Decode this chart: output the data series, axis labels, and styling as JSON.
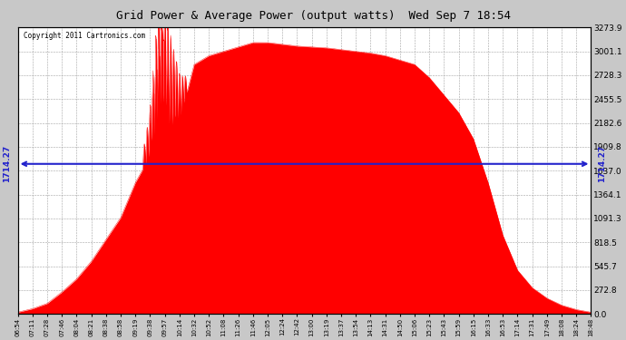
{
  "title": "Grid Power & Average Power (output watts)  Wed Sep 7 18:54",
  "copyright": "Copyright 2011 Cartronics.com",
  "avg_power": 1714.27,
  "avg_label": "1714.27",
  "yticks": [
    0.0,
    272.8,
    545.7,
    818.5,
    1091.3,
    1364.1,
    1637.0,
    1909.8,
    2182.6,
    2455.5,
    2728.3,
    3001.1,
    3273.9
  ],
  "ymax": 3273.9,
  "fill_color": "#ff0000",
  "avg_line_color": "#2222cc",
  "title_color": "#000000",
  "plot_bg": "#ffffff",
  "outer_bg": "#c8c8c8",
  "xtick_labels": [
    "06:54",
    "07:11",
    "07:28",
    "07:46",
    "08:04",
    "08:21",
    "08:38",
    "08:58",
    "09:19",
    "09:38",
    "09:57",
    "10:14",
    "10:32",
    "10:52",
    "11:08",
    "11:26",
    "11:46",
    "12:05",
    "12:24",
    "12:42",
    "13:00",
    "13:19",
    "13:37",
    "13:54",
    "14:13",
    "14:31",
    "14:50",
    "15:06",
    "15:23",
    "15:43",
    "15:59",
    "16:15",
    "16:33",
    "16:53",
    "17:14",
    "17:31",
    "17:49",
    "18:08",
    "18:24",
    "18:48"
  ]
}
